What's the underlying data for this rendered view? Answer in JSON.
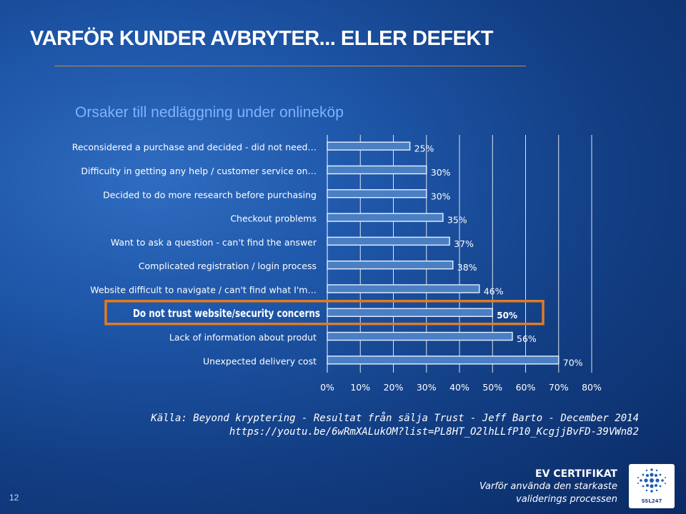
{
  "slide": {
    "title": "VARFÖR KUNDER AVBRYTER... ELLER DEFEKT",
    "subtitle": "Orsaker till nedläggning under onlineköp",
    "source_line1": "Källa: Beyond kryptering - Resultat från sälja Trust - Jeff Barto - December 2014",
    "source_line2": "https://youtu.be/6wRmXALukOM?list=PL8HT_O2lhLLfP10_KcgjjBvFD-39VWn82",
    "page_number": "12",
    "brand_title": "EV CERTIFIKAT",
    "brand_line1": "Varför använda den starkaste",
    "brand_line2": "validerings processen",
    "logo_text": "SSL247"
  },
  "colors": {
    "bar_fill": "#4a7fc4",
    "bar_stroke": "#e8f0ff",
    "highlight_box": "#e07b22",
    "subtitle": "#7fb3ff"
  },
  "chart_data": {
    "type": "bar",
    "orientation": "horizontal",
    "categories": [
      "Reconsidered a purchase and decided - did not need…",
      "Difficulty in getting any help / customer service on…",
      "Decided to do more research before purchasing",
      "Checkout problems",
      "Want to ask a question - can't find the answer",
      "Complicated registration / login process",
      "Website difficult to navigate / can't find what I'm…",
      "Do not trust website/security concerns",
      "Lack of information about produt",
      "Unexpected delivery cost"
    ],
    "values": [
      25,
      30,
      30,
      35,
      37,
      38,
      46,
      50,
      56,
      70
    ],
    "data_labels": [
      "25%",
      "30%",
      "30%",
      "35%",
      "37%",
      "38%",
      "46%",
      "50%",
      "56%",
      "70%"
    ],
    "highlighted_category": "Do not trust website/security concerns",
    "xlim": [
      0,
      80
    ],
    "x_ticks": [
      "0%",
      "10%",
      "20%",
      "30%",
      "40%",
      "50%",
      "60%",
      "70%",
      "80%"
    ],
    "grid": true
  }
}
